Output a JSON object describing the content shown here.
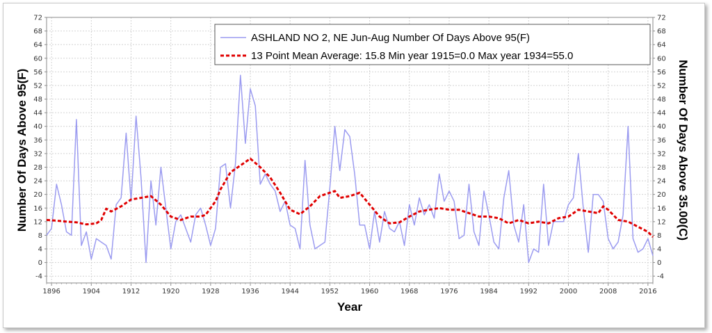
{
  "chart_data": {
    "type": "line",
    "xlabel": "Year",
    "ylabel": "Number Of Days Above 95(F)",
    "ylabel_right": "Number Of Days Above 35.00(C)",
    "xlim": [
      1895,
      2017
    ],
    "ylim": [
      -6,
      72
    ],
    "x_ticks": [
      1896,
      1904,
      1912,
      1920,
      1928,
      1936,
      1944,
      1952,
      1960,
      1968,
      1976,
      1984,
      1992,
      2000,
      2008,
      2016
    ],
    "y_ticks": [
      -4,
      0,
      4,
      8,
      12,
      16,
      20,
      24,
      28,
      32,
      36,
      40,
      44,
      48,
      52,
      56,
      60,
      64,
      68,
      72
    ],
    "grid": true,
    "legend_position": "top-right",
    "colors": {
      "series": "#9b9bf0",
      "mean": "#e00000"
    },
    "series": [
      {
        "name": "ASHLAND NO 2, NE  Jun-Aug  Number Of Days Above 95(F)",
        "style": "solid",
        "x": [
          1895,
          1896,
          1897,
          1898,
          1899,
          1900,
          1901,
          1902,
          1903,
          1904,
          1905,
          1906,
          1907,
          1908,
          1909,
          1910,
          1911,
          1912,
          1913,
          1914,
          1915,
          1916,
          1917,
          1918,
          1919,
          1920,
          1921,
          1922,
          1923,
          1924,
          1925,
          1926,
          1927,
          1928,
          1929,
          1930,
          1931,
          1932,
          1933,
          1934,
          1935,
          1936,
          1937,
          1938,
          1939,
          1940,
          1941,
          1942,
          1943,
          1944,
          1945,
          1946,
          1947,
          1948,
          1949,
          1950,
          1951,
          1952,
          1953,
          1954,
          1955,
          1956,
          1957,
          1958,
          1959,
          1960,
          1961,
          1962,
          1963,
          1964,
          1965,
          1966,
          1967,
          1968,
          1969,
          1970,
          1971,
          1972,
          1973,
          1974,
          1975,
          1976,
          1977,
          1978,
          1979,
          1980,
          1981,
          1982,
          1983,
          1984,
          1985,
          1986,
          1987,
          1988,
          1989,
          1990,
          1991,
          1992,
          1993,
          1994,
          1995,
          1996,
          1997,
          1998,
          1999,
          2000,
          2001,
          2002,
          2003,
          2004,
          2005,
          2006,
          2007,
          2008,
          2009,
          2010,
          2011,
          2012,
          2013,
          2014,
          2015,
          2016,
          2017
        ],
        "y": [
          8,
          10,
          23,
          17,
          9,
          8,
          42,
          5,
          9,
          1,
          7,
          6,
          5,
          1,
          17,
          19,
          38,
          18,
          43,
          25,
          0,
          24,
          11,
          28,
          16,
          4,
          12,
          14,
          10,
          6,
          14,
          16,
          11,
          5,
          10,
          28,
          29,
          16,
          29,
          55,
          35,
          51,
          46,
          23,
          26,
          23,
          21,
          15,
          18,
          11,
          10,
          4,
          30,
          11,
          4,
          5,
          6,
          22,
          40,
          27,
          39,
          37,
          26,
          11,
          11,
          4,
          15,
          6,
          15,
          10,
          9,
          12,
          5,
          17,
          11,
          19,
          14,
          17,
          13,
          26,
          18,
          21,
          18,
          7,
          8,
          23,
          9,
          5,
          21,
          14,
          6,
          4,
          19,
          27,
          11,
          6,
          17,
          0,
          4,
          3,
          23,
          5,
          12,
          12,
          12,
          17,
          19,
          32,
          16,
          3,
          20,
          20,
          18,
          7,
          4,
          6,
          14,
          40,
          7,
          3,
          4,
          7,
          2
        ]
      },
      {
        "name": "13 Point Mean  Average: 15.8  Min year 1915=0.0  Max year 1934=55.0",
        "style": "dashed",
        "x": [
          1895,
          1897,
          1899,
          1901,
          1903,
          1905,
          1906,
          1907,
          1908,
          1910,
          1912,
          1914,
          1916,
          1918,
          1920,
          1922,
          1924,
          1926,
          1927,
          1929,
          1930,
          1932,
          1934,
          1936,
          1938,
          1940,
          1942,
          1944,
          1946,
          1948,
          1950,
          1952,
          1953,
          1954,
          1956,
          1958,
          1960,
          1962,
          1964,
          1966,
          1968,
          1970,
          1972,
          1974,
          1976,
          1978,
          1980,
          1982,
          1984,
          1986,
          1988,
          1990,
          1992,
          1994,
          1996,
          1998,
          2000,
          2002,
          2004,
          2006,
          2007,
          2008,
          2010,
          2012,
          2014,
          2016,
          2017
        ],
        "y": [
          12.5,
          12.3,
          12,
          11.8,
          11.2,
          11.5,
          12.5,
          15.8,
          15,
          16.5,
          18.5,
          19,
          19.5,
          17,
          13.5,
          12.5,
          13.5,
          13.5,
          14,
          18,
          21.5,
          26.5,
          28.5,
          30.5,
          28,
          25,
          20.5,
          15.5,
          14.2,
          16.5,
          19.5,
          20.5,
          21,
          19,
          19.5,
          20.5,
          17,
          13.5,
          11.5,
          11.8,
          13.5,
          15,
          15.5,
          16,
          15.5,
          15.5,
          14.5,
          13.5,
          13.5,
          13,
          11.5,
          12.5,
          11.5,
          12,
          11.5,
          13,
          13.5,
          15.5,
          15,
          14.5,
          16.5,
          15.5,
          12.5,
          12,
          10.5,
          9,
          7.5
        ]
      }
    ]
  }
}
